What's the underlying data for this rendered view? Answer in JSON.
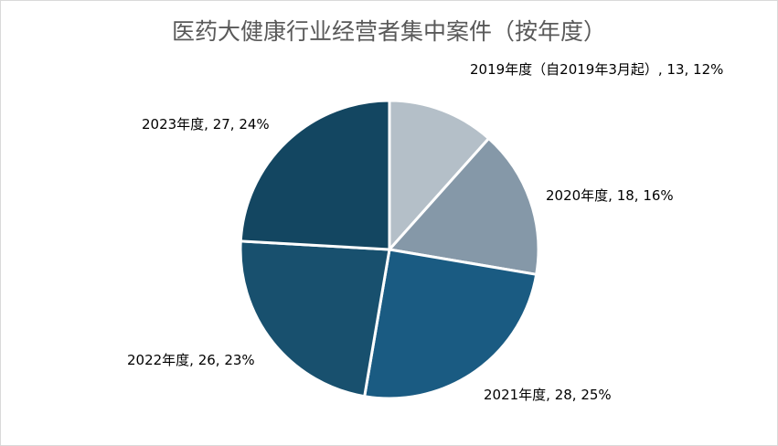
{
  "chart_data": {
    "type": "pie",
    "title": "医药大健康行业经营者集中案件（按年度）",
    "categories": [
      "2019年度（自2019年3月起）",
      "2020年度",
      "2021年度",
      "2022年度",
      "2023年度"
    ],
    "values": [
      13,
      18,
      28,
      26,
      27
    ],
    "percents": [
      "12%",
      "16%",
      "25%",
      "23%",
      "24%"
    ],
    "labels": [
      "2019年度（自2019年3月起）, 13, 12%",
      "2020年度, 18, 16%",
      "2021年度, 28, 25%",
      "2022年度, 26, 23%",
      "2023年度, 27, 24%"
    ],
    "colors": [
      "#b4bfc8",
      "#8598a8",
      "#1a5b82",
      "#18506e",
      "#134661"
    ],
    "start_angle": "12 o'clock",
    "direction": "clockwise"
  }
}
